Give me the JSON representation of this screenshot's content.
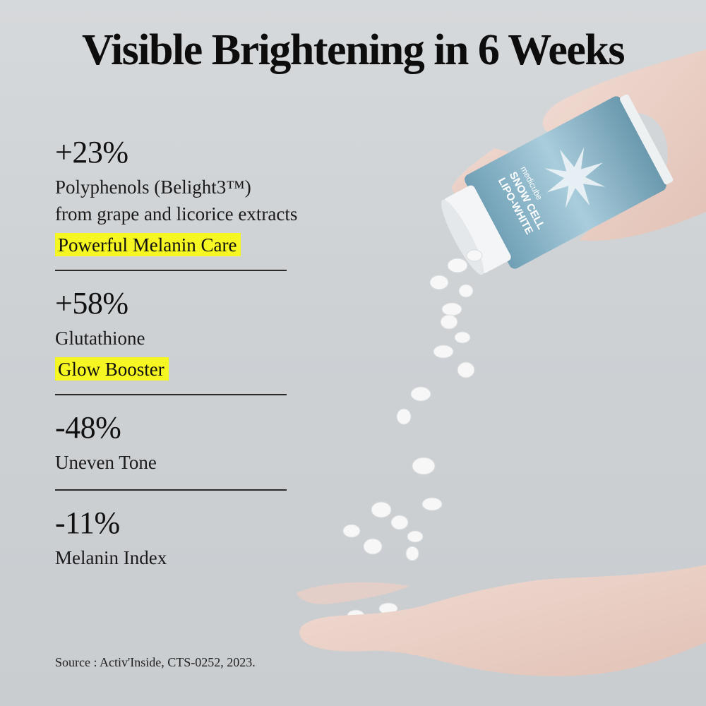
{
  "title": "Visible Brightening in 6 Weeks",
  "stats": [
    {
      "value": "+23%",
      "lines": [
        "Polyphenols (Belight3™)",
        "from grape and licorice extracts"
      ],
      "highlight": "Powerful Melanin Care"
    },
    {
      "value": "+58%",
      "lines": [
        "Glutathione"
      ],
      "highlight": "Glow Booster"
    },
    {
      "value": "-48%",
      "lines": [
        "Uneven Tone"
      ],
      "highlight": ""
    },
    {
      "value": "-11%",
      "lines": [
        "Melanin Index"
      ],
      "highlight": ""
    }
  ],
  "product": {
    "brand": "medicube",
    "name_line1": "SNOW CELL",
    "name_line2": "LIPO-WHITE"
  },
  "source": "Source : Activ'Inside, CTS-0252, 2023.",
  "colors": {
    "highlight": "#f6f722",
    "bottle": "#8fb6c8",
    "background": "#cdd1d4"
  }
}
